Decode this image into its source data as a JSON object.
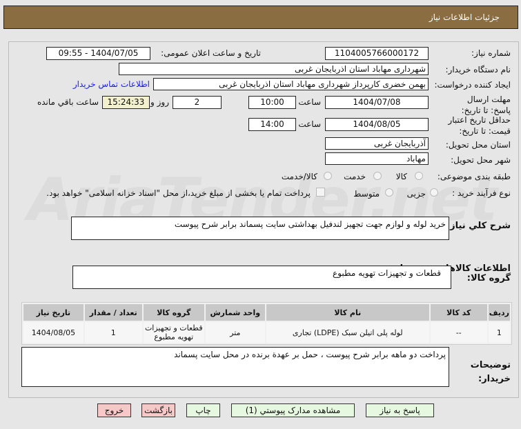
{
  "header": {
    "title": "جزئیات اطلاعات نیاز"
  },
  "watermark": "AriaTender.net",
  "form": {
    "need_number_label": "شماره نیاز:",
    "need_number": "1104005766000172",
    "announce_label": "تاریخ و ساعت اعلان عمومی:",
    "announce_value": "1404/07/05 - 09:55",
    "buyer_label": "نام دستگاه خریدار:",
    "buyer_value": "شهرداری مهاباد استان اذربایجان غربی",
    "creator_label": "ایجاد کننده درخواست:",
    "creator_value": "بهمن خضری کارپرداز شهرداری مهاباد استان اذربایجان غربی",
    "contact_link": "اطلاعات تماس خریدار",
    "deadline_label": "مهلت ارسال پاسخ: تا تاریخ:",
    "deadline_date": "1404/07/08",
    "hour_label": "ساعت",
    "deadline_time": "10:00",
    "days": "2",
    "days_label": "روز و",
    "remaining": "15:24:33",
    "remaining_label": "ساعت باقي مانده",
    "validity_label": "حداقل تاریخ اعتبار قیمت: تا تاریخ:",
    "validity_date": "1404/08/05",
    "validity_time": "14:00",
    "province_label": "استان محل تحویل:",
    "province_value": "آذربایجان غربی",
    "city_label": "شهر محل تحویل:",
    "city_value": "مهاباد",
    "category_label": "طبقه بندی موضوعی:",
    "category_options": [
      "کالا",
      "خدمت",
      "کالا/خدمت"
    ],
    "process_label": "نوع فرآیند خرید :",
    "process_options": [
      "جزیی",
      "متوسط"
    ],
    "payment_note": "پرداخت تمام یا بخشی از مبلغ خرید،از محل \"اسناد خزانه اسلامی\" خواهد بود.",
    "description_label": "شرح کلي نیاز:",
    "description_value": "خرید لوله و لوازم جهت تجهیز لندفیل بهداشتی سایت پسماند برابر شرح پیوست",
    "goods_heading": "اطلاعات کالاهاي مورد نیاز",
    "group_label": "گروه کالا:",
    "group_value": "قطعات و تجهیزات تهویه مطبوع",
    "notes_label": "توضیحات خریدار:",
    "notes_value": "پرداخت دو ماهه برابر شرح پیوست ، حمل بر عهدة برنده در محل سایت پسماند"
  },
  "table": {
    "headers": [
      "ردیف",
      "کد کالا",
      "نام کالا",
      "واحد شمارش",
      "گروه کالا",
      "تعداد / مقدار",
      "تاریخ نیاز"
    ],
    "rows": [
      [
        "1",
        "--",
        "لوله پلی اتیلن سبک (LDPE) تجاری",
        "متر",
        "قطعات و تجهیزات تهویه مطبوع",
        "1",
        "1404/08/05"
      ]
    ]
  },
  "buttons": {
    "reply": "پاسخ به نیاز",
    "attachments": "مشاهده مدارک پیوستي (1)",
    "print": "چاپ",
    "back": "بازگشت",
    "exit": "خروج"
  },
  "colors": {
    "header": "#8b6d42",
    "green_button": "#e6f8e0",
    "red_button": "#f8c8c8",
    "link": "#1a1aff"
  }
}
